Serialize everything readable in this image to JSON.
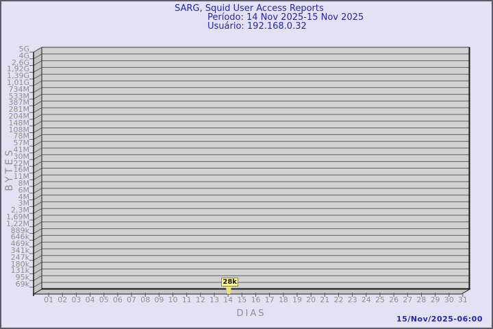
{
  "header": {
    "title": "SARG, Squid User Access Reports",
    "period_line": "Período: 14 Nov 2025-15 Nov 2025",
    "user_line": "Usuário: 192.168.0.32"
  },
  "footer": {
    "timestamp": "15/Nov/2025-06:00"
  },
  "chart_data": {
    "type": "line",
    "title": "SARG, Squid User Access Reports",
    "subtitle_period": "Período: 14 Nov 2025-15 Nov 2025",
    "subtitle_user": "Usuário: 192.168.0.32",
    "xlabel": "DIAS",
    "ylabel": "BYTES",
    "yscale": "log",
    "ylim": [
      "69k",
      "5G"
    ],
    "grid": true,
    "x_categories": [
      "01",
      "02",
      "03",
      "04",
      "05",
      "06",
      "07",
      "08",
      "09",
      "10",
      "11",
      "12",
      "13",
      "14",
      "15",
      "16",
      "17",
      "18",
      "19",
      "20",
      "21",
      "22",
      "23",
      "24",
      "25",
      "26",
      "27",
      "28",
      "29",
      "30",
      "31"
    ],
    "y_tick_labels": [
      "5G",
      "4G",
      "2,6G",
      "1,92G",
      "1,39G",
      "1,01G",
      "734M",
      "533M",
      "387M",
      "281M",
      "204M",
      "148M",
      "108M",
      "78M",
      "57M",
      "41M",
      "30M",
      "22M",
      "16M",
      "11M",
      "8M",
      "6M",
      "4M",
      "3M",
      "2,3M",
      "1,69M",
      "1,22M",
      "889k",
      "646k",
      "469k",
      "341k",
      "247k",
      "180k",
      "131k",
      "95k",
      "69k"
    ],
    "series": [
      {
        "name": "bytes_per_day",
        "points": [
          {
            "day": "14",
            "value": "28k"
          }
        ]
      }
    ],
    "marker": {
      "label": "28k",
      "day": "14"
    }
  },
  "colors": {
    "background": "#e2e2f4",
    "outer_border": "#5d5d68",
    "title_text": "#2626ad",
    "tick_text": "#8e8e8e",
    "plot_fill": "#d2d2d2",
    "wall_fill": "#c5c5c5",
    "grid_line": "#5e5e5e",
    "edge_line": "#161616",
    "marker_fill": "#ffff9c",
    "marker_border": "#86862a",
    "marker_flag": "#ece27a",
    "marker_text": "#14140a"
  }
}
